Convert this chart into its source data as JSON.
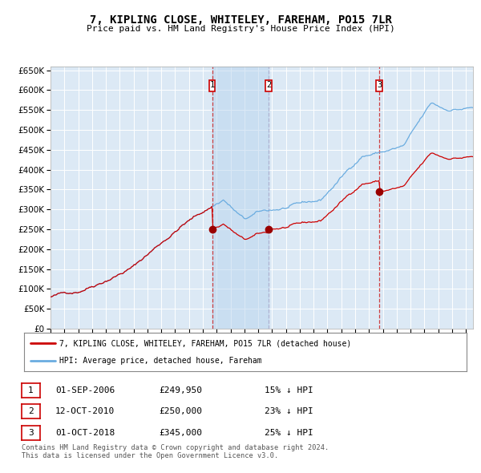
{
  "title": "7, KIPLING CLOSE, WHITELEY, FAREHAM, PO15 7LR",
  "subtitle": "Price paid vs. HM Land Registry's House Price Index (HPI)",
  "plot_bg": "#dce9f5",
  "grid_color": "#ffffff",
  "hpi_color": "#6aace0",
  "price_color": "#cc0000",
  "ylim": [
    0,
    660000
  ],
  "yticks": [
    0,
    50000,
    100000,
    150000,
    200000,
    250000,
    300000,
    350000,
    400000,
    450000,
    500000,
    550000,
    600000,
    650000
  ],
  "sale_labels": [
    "1",
    "2",
    "3"
  ],
  "legend_property": "7, KIPLING CLOSE, WHITELEY, FAREHAM, PO15 7LR (detached house)",
  "legend_hpi": "HPI: Average price, detached house, Fareham",
  "table_rows": [
    {
      "label": "1",
      "date": "01-SEP-2006",
      "price": "£249,950",
      "hpi": "15% ↓ HPI"
    },
    {
      "label": "2",
      "date": "12-OCT-2010",
      "price": "£250,000",
      "hpi": "23% ↓ HPI"
    },
    {
      "label": "3",
      "date": "01-OCT-2018",
      "price": "£345,000",
      "hpi": "25% ↓ HPI"
    }
  ],
  "footer": "Contains HM Land Registry data © Crown copyright and database right 2024.\nThis data is licensed under the Open Government Licence v3.0."
}
